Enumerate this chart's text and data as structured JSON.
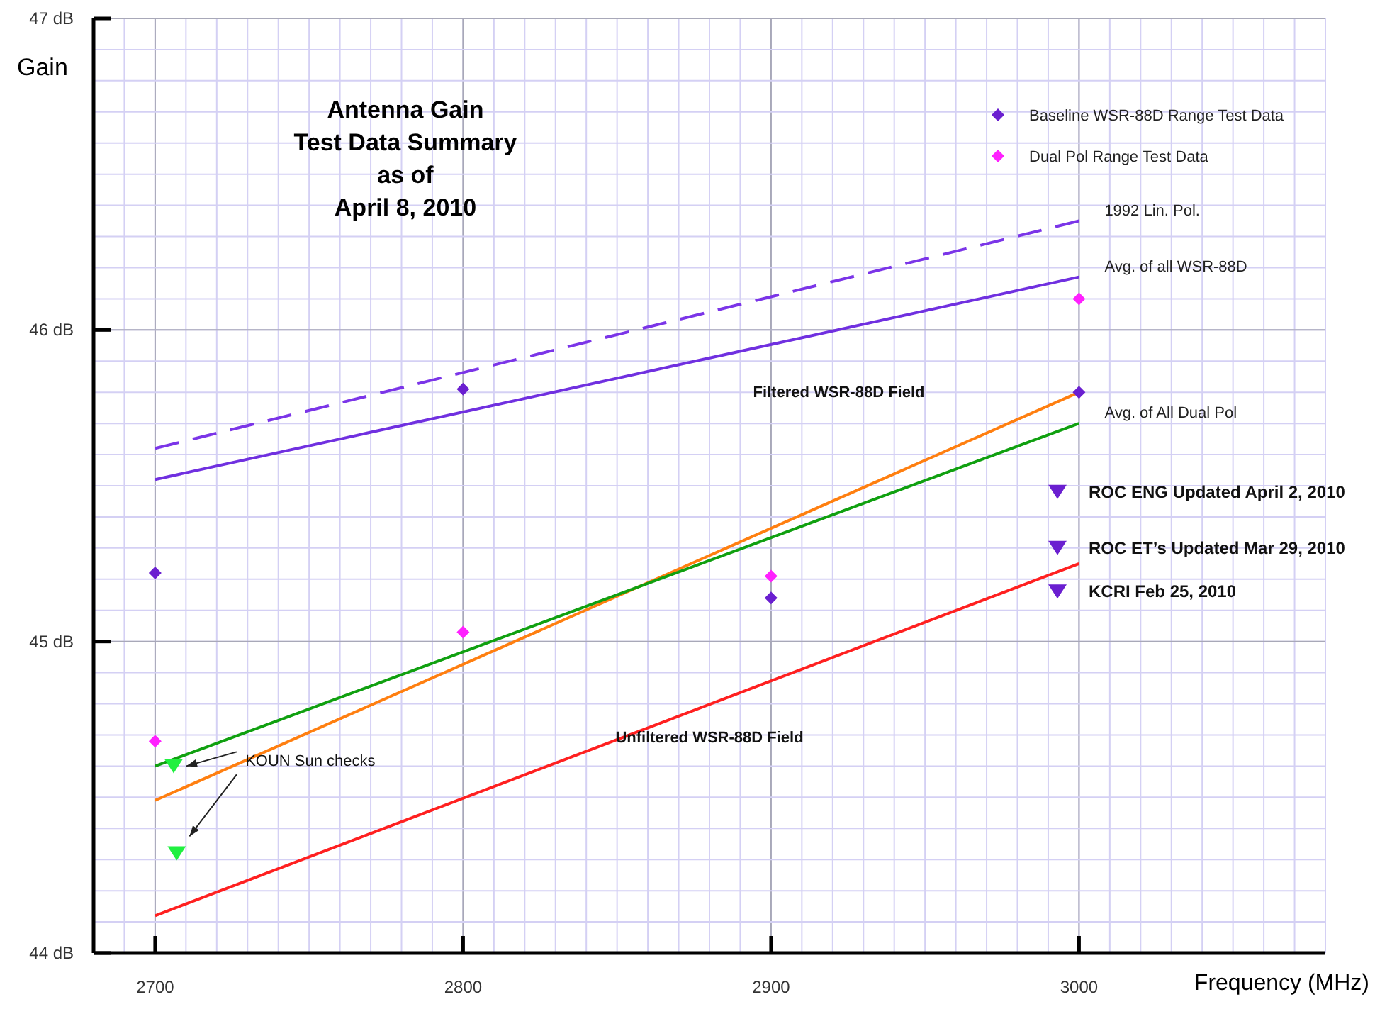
{
  "chart_data": {
    "type": "line",
    "title": "Antenna Gain\nTest Data Summary\nas of\nApril 8, 2010",
    "xlabel": "Frequency (MHz)",
    "ylabel": "Gain",
    "xlim": [
      2680,
      3080
    ],
    "xticks": [
      2700,
      2800,
      2900,
      3000
    ],
    "ylim": [
      44,
      47
    ],
    "yticks": [
      {
        "value": 44,
        "label": "44 dB"
      },
      {
        "value": 45,
        "label": "45 dB"
      },
      {
        "value": 46,
        "label": "46 dB"
      },
      {
        "value": 47,
        "label": "47 dB"
      }
    ],
    "grid": true,
    "legend": "top right",
    "series": [
      {
        "name": "1992 Lin. Pol.",
        "color": "#7b35e8",
        "line_style": "dashed",
        "marker": "none",
        "x": [
          2700,
          3000
        ],
        "values": [
          45.62,
          46.35
        ]
      },
      {
        "name": "Avg. of all WSR-88D",
        "color": "#7030e0",
        "line_style": "solid",
        "marker": "none",
        "x": [
          2700,
          3000
        ],
        "values": [
          45.52,
          46.17
        ]
      },
      {
        "color": "#ff7f10",
        "line_style": "solid",
        "marker": "none",
        "x": [
          2700,
          3000
        ],
        "values": [
          44.49,
          45.8
        ]
      },
      {
        "name": "Avg. of All Dual Pol",
        "color": "#10a010",
        "line_style": "solid",
        "marker": "none",
        "x": [
          2700,
          3000
        ],
        "values": [
          44.6,
          45.7
        ]
      },
      {
        "color": "#ff2020",
        "line_style": "solid",
        "marker": "none",
        "x": [
          2700,
          3000
        ],
        "values": [
          44.12,
          45.25
        ]
      },
      {
        "name": "Baseline WSR-88D Range Test Data",
        "type": "scatter",
        "color": "#6a1fd0",
        "marker": "diamond",
        "x": [
          2700,
          2800,
          2900,
          3000
        ],
        "values": [
          45.22,
          45.81,
          45.14,
          45.8
        ]
      },
      {
        "name": "Dual Pol Range Test Data",
        "type": "scatter",
        "color": "#ff20ff",
        "marker": "diamond",
        "x": [
          2700,
          2800,
          2900,
          3000
        ],
        "values": [
          44.68,
          45.03,
          45.21,
          46.1
        ]
      },
      {
        "name": "ROC ENG Updated April 2, 2010",
        "type": "scatter",
        "color": "#6a1fd0",
        "marker": "triangle",
        "x": [
          2993
        ],
        "values": [
          45.48
        ]
      },
      {
        "name": "ROC ET’s Updated Mar 29, 2010",
        "type": "scatter",
        "color": "#6a1fd0",
        "marker": "triangle",
        "x": [
          2993
        ],
        "values": [
          45.3
        ]
      },
      {
        "name": "KCRI Feb 25, 2010",
        "type": "scatter",
        "color": "#6a1fd0",
        "marker": "triangle",
        "x": [
          2993
        ],
        "values": [
          45.16
        ]
      },
      {
        "type": "scatter",
        "color": "#20f040",
        "marker": "triangle",
        "x": [
          2706,
          2707
        ],
        "values": [
          44.6,
          44.32
        ]
      }
    ],
    "annotations": [
      "Filtered WSR-88D Field",
      "Unfiltered WSR-88D Field",
      "KOUN Sun checks"
    ]
  }
}
